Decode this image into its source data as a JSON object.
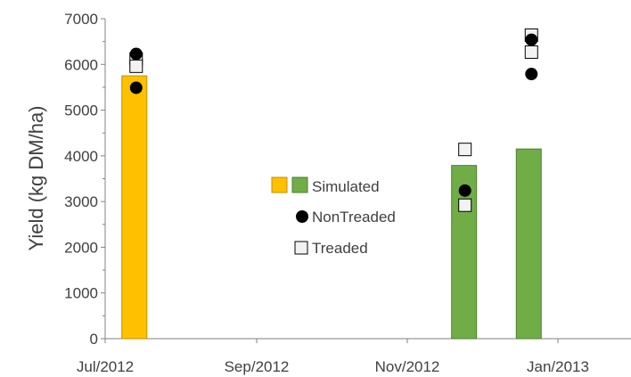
{
  "chart_data": {
    "type": "bar",
    "ylabel": "Yield (kg DM/ha)",
    "xlabel": "",
    "ylim": [
      0,
      7000
    ],
    "yticks": [
      0,
      1000,
      2000,
      3000,
      4000,
      5000,
      6000,
      7000
    ],
    "xticks": [
      "Jul/2012",
      "Sep/2012",
      "Nov/2012",
      "Jan/2013"
    ],
    "grid": false,
    "legend_position": "center",
    "legend": {
      "simulated_label": "Simulated",
      "nontreaded_label": "NonTreaded",
      "treaded_label": "Treaded"
    },
    "colors": {
      "simulated_first": "#FFC000",
      "simulated_first_edge": "#C09000",
      "simulated": "#70AD47",
      "simulated_edge": "#4E7F31",
      "nontreaded": "#000000",
      "treaded_fill": "#F2F2F2",
      "treaded_edge": "#000000",
      "axis": "#808080",
      "text": "#404040"
    },
    "bars": [
      {
        "date": "2012-07-05",
        "value": 5750,
        "color_key": "simulated_first"
      },
      {
        "date": "2012-12-10",
        "value": 3790,
        "color_key": "simulated"
      },
      {
        "date": "2013-01-10",
        "value": 4150,
        "color_key": "simulated"
      }
    ],
    "series": [
      {
        "name": "NonTreaded",
        "points": [
          {
            "date": "2012-07-05",
            "value": 6230
          },
          {
            "date": "2012-07-05",
            "value": 5490
          },
          {
            "date": "2012-12-10",
            "value": 3240
          },
          {
            "date": "2013-01-10",
            "value": 6540
          },
          {
            "date": "2013-01-10",
            "value": 5790
          }
        ]
      },
      {
        "name": "Treaded",
        "points": [
          {
            "date": "2012-07-05",
            "value": 6120
          },
          {
            "date": "2012-07-05",
            "value": 5960
          },
          {
            "date": "2012-12-10",
            "value": 4140
          },
          {
            "date": "2012-12-10",
            "value": 2920
          },
          {
            "date": "2013-01-10",
            "value": 6640
          },
          {
            "date": "2013-01-10",
            "value": 6270
          }
        ]
      }
    ]
  }
}
